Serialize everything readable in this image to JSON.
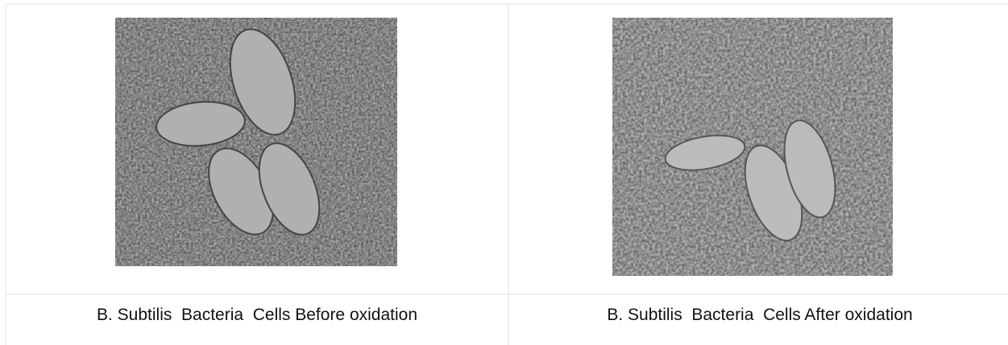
{
  "cells": [
    {
      "caption": "B. Subtilis  Bacteria  Cells Before oxidation"
    },
    {
      "caption": "B. Subtilis  Bacteria  Cells After oxidation"
    }
  ]
}
